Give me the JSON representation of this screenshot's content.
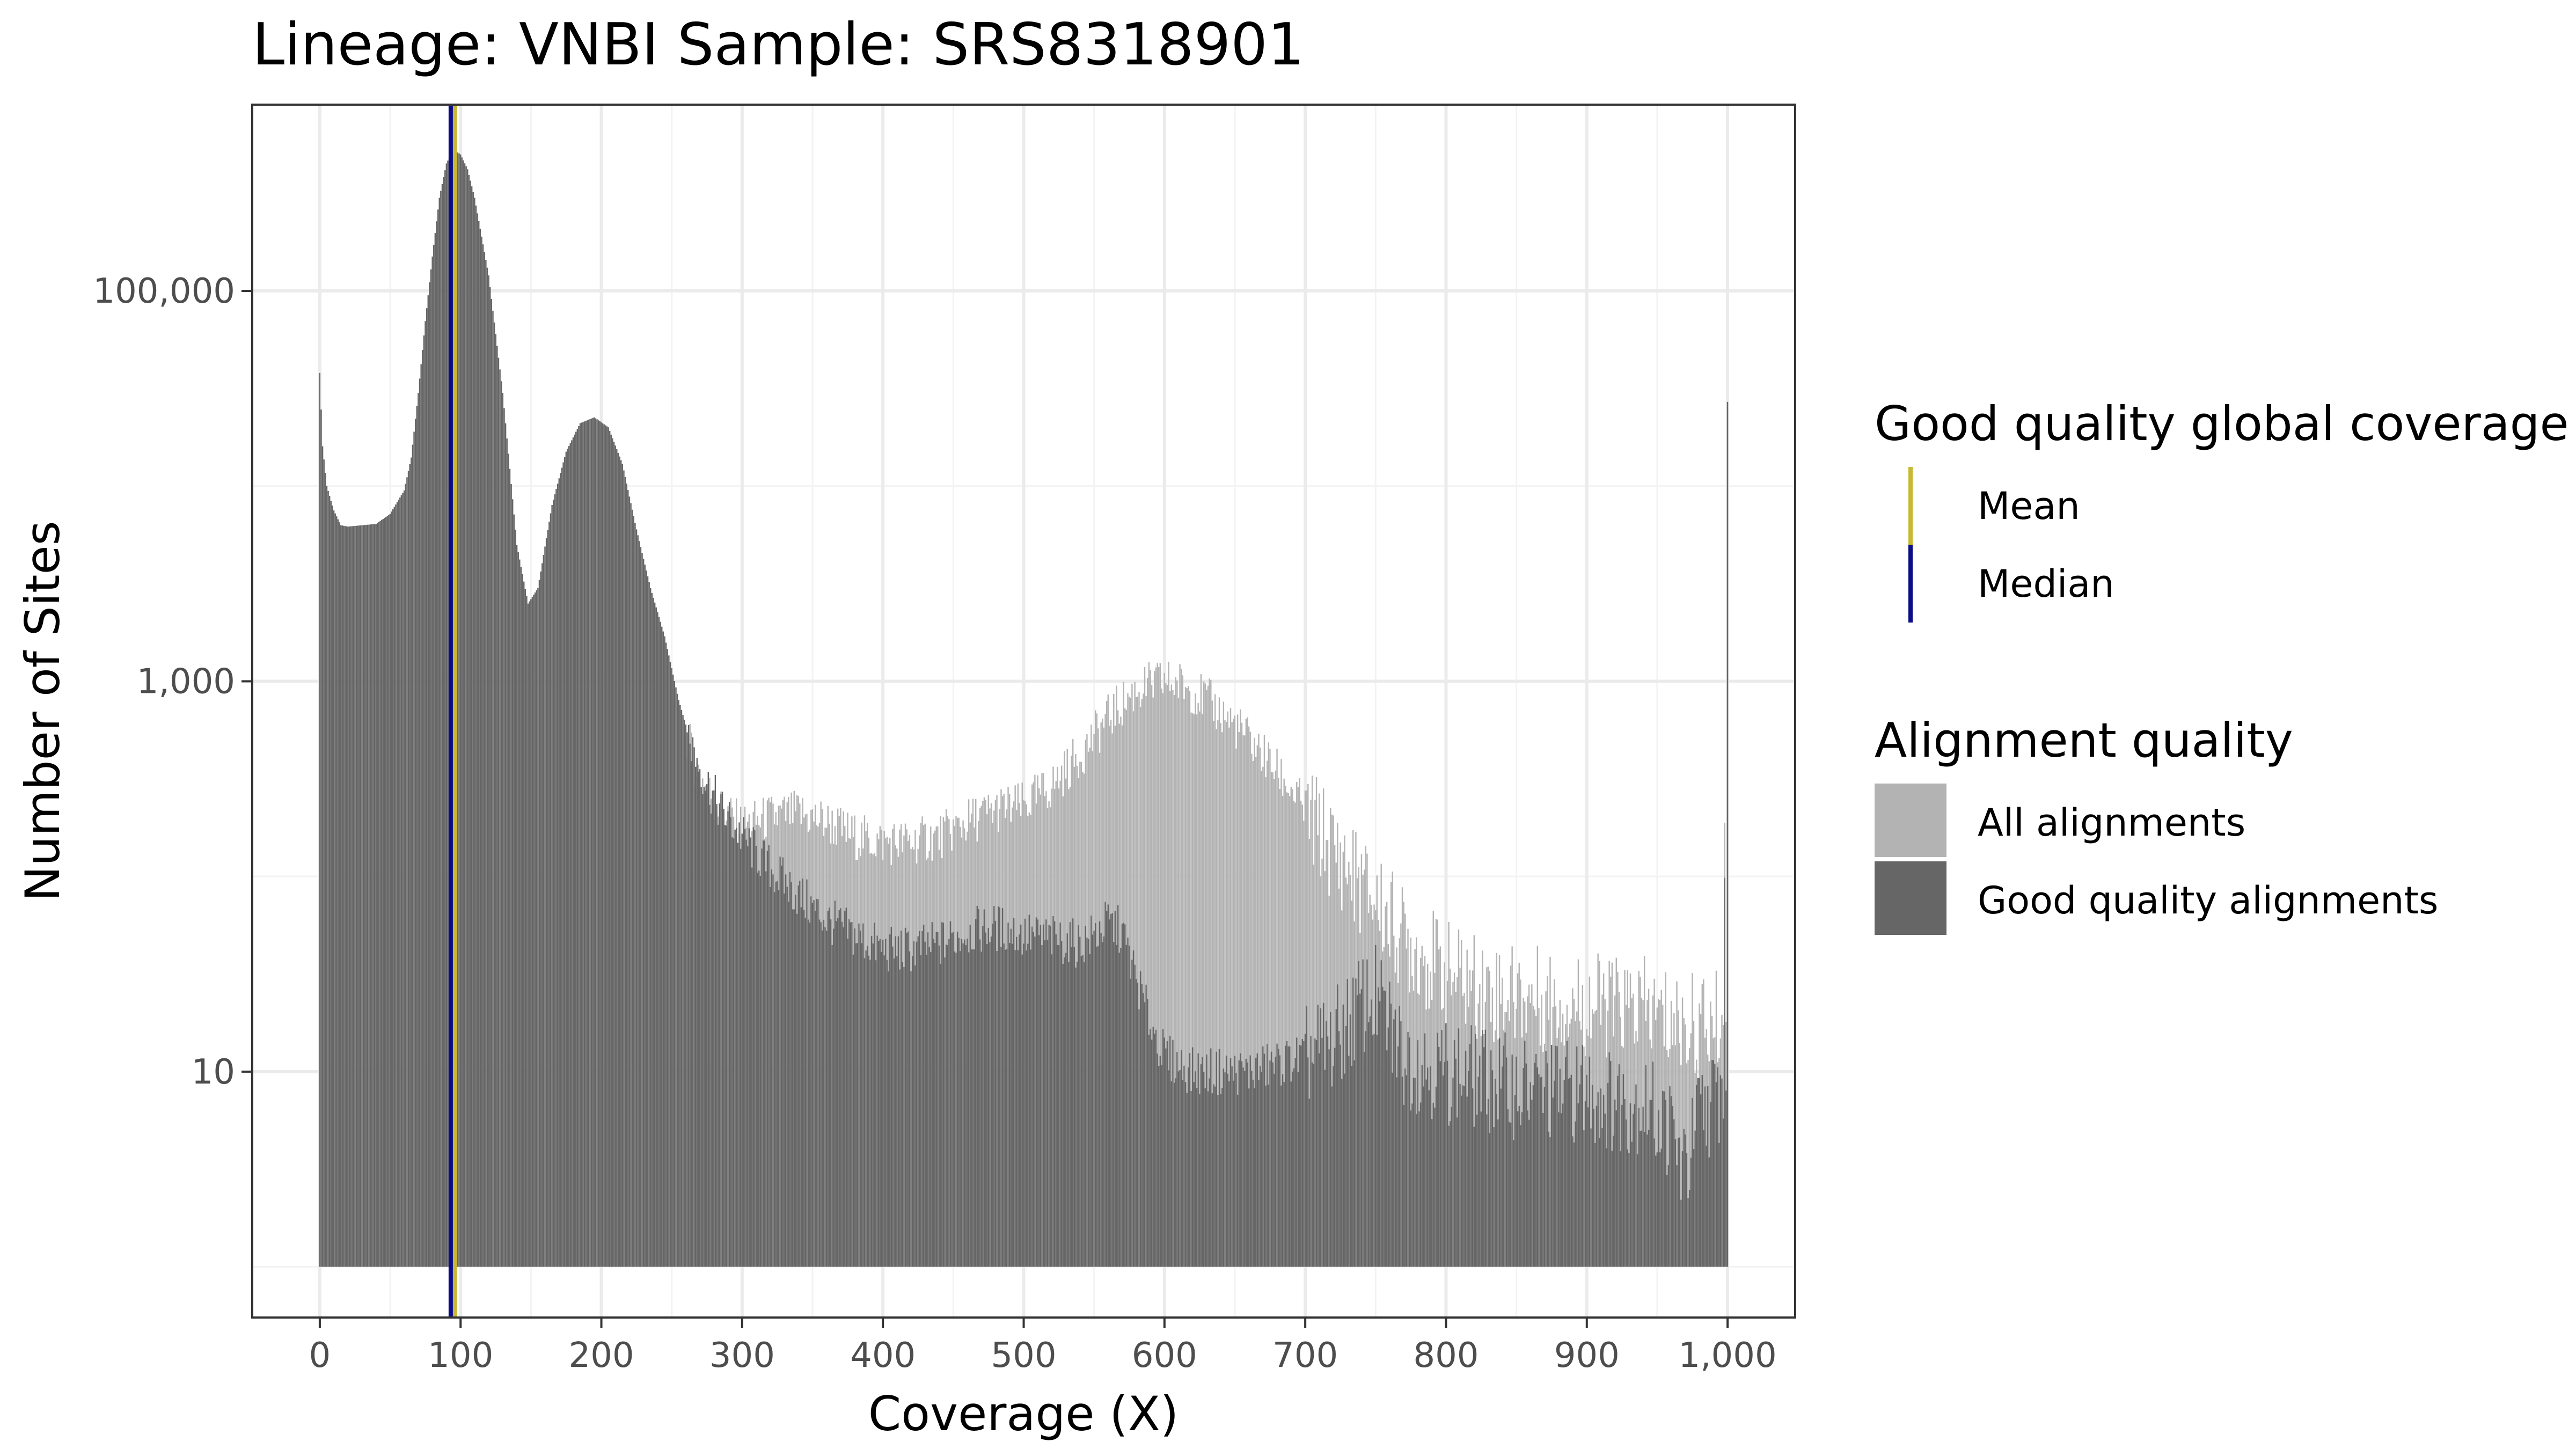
{
  "chart_data": {
    "type": "bar",
    "title": "Lineage: VNBI  Sample: SRS8318901",
    "xlabel": "Coverage (X)",
    "ylabel": "Number of Sites",
    "x_ticks": [
      0,
      100,
      200,
      300,
      400,
      500,
      600,
      700,
      800,
      900,
      1000
    ],
    "x_tick_labels": [
      "0",
      "100",
      "200",
      "300",
      "400",
      "500",
      "600",
      "700",
      "800",
      "900",
      "1,000"
    ],
    "xlim": [
      -48,
      1048
    ],
    "y_scale": "log10",
    "y_ticks": [
      10,
      1000,
      100000
    ],
    "y_tick_labels": [
      "10",
      "1,000",
      "100,000"
    ],
    "ylim": [
      0.55,
      900000
    ],
    "bar_baseline": 1,
    "grid": true,
    "series": [
      {
        "name": "All alignments",
        "color": "#b3b3b3",
        "points": [
          [
            0,
            38000
          ],
          [
            2,
            16000
          ],
          [
            5,
            10000
          ],
          [
            10,
            7500
          ],
          [
            15,
            6300
          ],
          [
            20,
            6200
          ],
          [
            30,
            6300
          ],
          [
            40,
            6400
          ],
          [
            50,
            7200
          ],
          [
            60,
            9500
          ],
          [
            65,
            14000
          ],
          [
            70,
            30000
          ],
          [
            75,
            70000
          ],
          [
            80,
            150000
          ],
          [
            85,
            300000
          ],
          [
            90,
            450000
          ],
          [
            95,
            530000
          ],
          [
            100,
            500000
          ],
          [
            105,
            420000
          ],
          [
            110,
            300000
          ],
          [
            120,
            120000
          ],
          [
            130,
            30000
          ],
          [
            140,
            5000
          ],
          [
            148,
            2500
          ],
          [
            155,
            3000
          ],
          [
            165,
            8000
          ],
          [
            175,
            15000
          ],
          [
            185,
            21000
          ],
          [
            195,
            22500
          ],
          [
            205,
            20000
          ],
          [
            215,
            13000
          ],
          [
            225,
            6000
          ],
          [
            235,
            3000
          ],
          [
            245,
            1700
          ],
          [
            255,
            800
          ],
          [
            265,
            400
          ],
          [
            275,
            280
          ],
          [
            285,
            220
          ],
          [
            300,
            180
          ],
          [
            320,
            200
          ],
          [
            340,
            210
          ],
          [
            360,
            190
          ],
          [
            380,
            160
          ],
          [
            400,
            150
          ],
          [
            420,
            150
          ],
          [
            440,
            160
          ],
          [
            460,
            190
          ],
          [
            480,
            220
          ],
          [
            500,
            230
          ],
          [
            520,
            290
          ],
          [
            540,
            420
          ],
          [
            560,
            650
          ],
          [
            580,
            900
          ],
          [
            600,
            1000
          ],
          [
            615,
            950
          ],
          [
            630,
            800
          ],
          [
            650,
            600
          ],
          [
            670,
            420
          ],
          [
            690,
            280
          ],
          [
            710,
            170
          ],
          [
            730,
            110
          ],
          [
            750,
            75
          ],
          [
            770,
            48
          ],
          [
            800,
            32
          ],
          [
            830,
            26
          ],
          [
            860,
            24
          ],
          [
            900,
            22
          ],
          [
            940,
            21
          ],
          [
            960,
            18
          ],
          [
            980,
            17
          ],
          [
            997,
            18
          ],
          [
            1000,
            27000
          ]
        ]
      },
      {
        "name": "Good quality alignments",
        "color": "#666666",
        "points": [
          [
            0,
            38000
          ],
          [
            2,
            16000
          ],
          [
            5,
            10000
          ],
          [
            10,
            7500
          ],
          [
            15,
            6300
          ],
          [
            20,
            6200
          ],
          [
            30,
            6300
          ],
          [
            40,
            6400
          ],
          [
            50,
            7200
          ],
          [
            60,
            9500
          ],
          [
            65,
            14000
          ],
          [
            70,
            30000
          ],
          [
            75,
            70000
          ],
          [
            80,
            150000
          ],
          [
            85,
            300000
          ],
          [
            90,
            450000
          ],
          [
            95,
            530000
          ],
          [
            100,
            500000
          ],
          [
            105,
            420000
          ],
          [
            110,
            300000
          ],
          [
            120,
            120000
          ],
          [
            130,
            30000
          ],
          [
            140,
            5000
          ],
          [
            148,
            2500
          ],
          [
            155,
            3000
          ],
          [
            165,
            8000
          ],
          [
            175,
            15000
          ],
          [
            185,
            21000
          ],
          [
            195,
            22500
          ],
          [
            205,
            20000
          ],
          [
            215,
            13000
          ],
          [
            225,
            6000
          ],
          [
            235,
            3000
          ],
          [
            245,
            1700
          ],
          [
            255,
            800
          ],
          [
            265,
            450
          ],
          [
            275,
            300
          ],
          [
            285,
            220
          ],
          [
            300,
            160
          ],
          [
            320,
            110
          ],
          [
            340,
            80
          ],
          [
            360,
            60
          ],
          [
            380,
            50
          ],
          [
            400,
            42
          ],
          [
            420,
            42
          ],
          [
            440,
            45
          ],
          [
            460,
            52
          ],
          [
            480,
            55
          ],
          [
            500,
            50
          ],
          [
            520,
            48
          ],
          [
            540,
            45
          ],
          [
            550,
            50
          ],
          [
            560,
            58
          ],
          [
            570,
            52
          ],
          [
            580,
            30
          ],
          [
            590,
            18
          ],
          [
            600,
            12
          ],
          [
            620,
            10
          ],
          [
            640,
            10
          ],
          [
            660,
            10
          ],
          [
            680,
            11
          ],
          [
            700,
            12
          ],
          [
            720,
            14
          ],
          [
            740,
            22
          ],
          [
            750,
            24
          ],
          [
            770,
            12
          ],
          [
            800,
            10
          ],
          [
            830,
            9
          ],
          [
            860,
            8
          ],
          [
            900,
            8
          ],
          [
            920,
            7
          ],
          [
            940,
            7
          ],
          [
            960,
            5
          ],
          [
            970,
            3
          ],
          [
            980,
            6
          ],
          [
            997,
            8
          ],
          [
            1000,
            27000
          ]
        ]
      }
    ],
    "reference_lines": [
      {
        "name": "Mean",
        "x": 96,
        "color": "#c8b932"
      },
      {
        "name": "Median",
        "x": 93,
        "color": "#0b0d85"
      }
    ],
    "legends": [
      {
        "title": "Good quality global coverage",
        "position": "right",
        "items": [
          {
            "label": "Mean",
            "color": "#c8b932",
            "key": "line"
          },
          {
            "label": "Median",
            "color": "#0b0d85",
            "key": "line"
          }
        ]
      },
      {
        "title": "Alignment quality",
        "position": "right",
        "items": [
          {
            "label": "All alignments",
            "color": "#b3b3b3",
            "key": "fill"
          },
          {
            "label": "Good quality alignments",
            "color": "#666666",
            "key": "fill"
          }
        ]
      }
    ]
  }
}
